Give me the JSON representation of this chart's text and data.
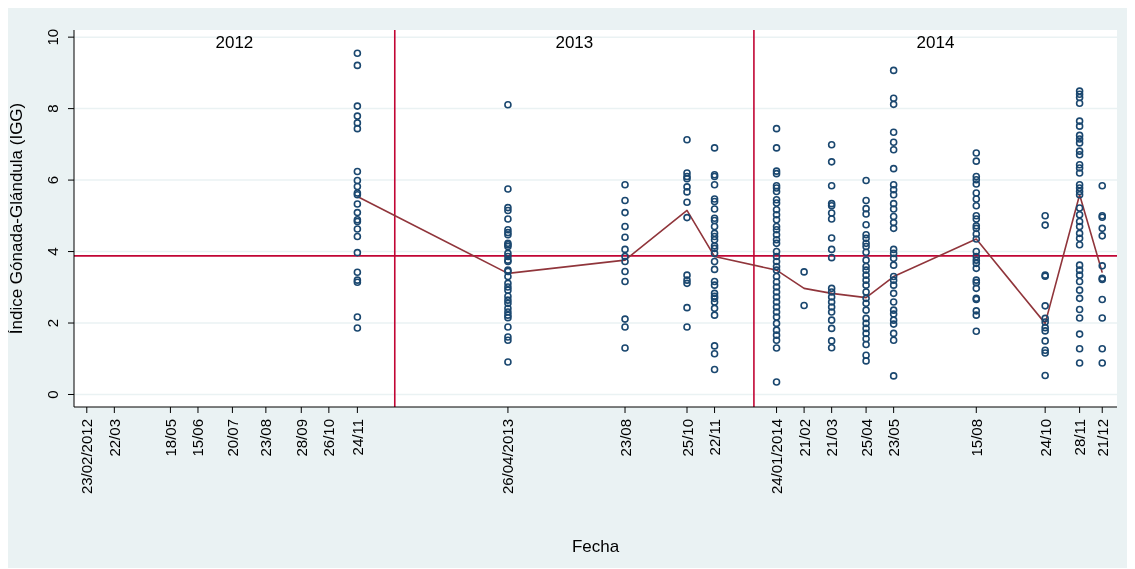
{
  "chart_data": {
    "type": "scatter",
    "xlabel": "Fecha",
    "ylabel": "Índice Gónada-Glándula (IGG)",
    "xlim": [
      "2012-02-10",
      "2015-01-05"
    ],
    "xticks": [
      {
        "value": "2012-02-23",
        "label": "23/02/2012"
      },
      {
        "value": "2012-03-22",
        "label": "22/03"
      },
      {
        "value": "2012-05-18",
        "label": "18/05"
      },
      {
        "value": "2012-06-15",
        "label": "15/06"
      },
      {
        "value": "2012-07-20",
        "label": "20/07"
      },
      {
        "value": "2012-08-23",
        "label": "23/08"
      },
      {
        "value": "2012-09-28",
        "label": "28/09"
      },
      {
        "value": "2012-10-26",
        "label": "26/10"
      },
      {
        "value": "2012-11-24",
        "label": "24/11"
      },
      {
        "value": "2013-04-26",
        "label": "26/04/2013"
      },
      {
        "value": "2013-08-23",
        "label": "23/08"
      },
      {
        "value": "2013-10-25",
        "label": "25/10"
      },
      {
        "value": "2013-11-22",
        "label": "22/11"
      },
      {
        "value": "2014-01-24",
        "label": "24/01/2014"
      },
      {
        "value": "2014-02-21",
        "label": "21/02"
      },
      {
        "value": "2014-03-21",
        "label": "21/03"
      },
      {
        "value": "2014-04-25",
        "label": "25/04"
      },
      {
        "value": "2014-05-23",
        "label": "23/05"
      },
      {
        "value": "2014-08-15",
        "label": "15/08"
      },
      {
        "value": "2014-10-24",
        "label": "24/10"
      },
      {
        "value": "2014-11-28",
        "label": "28/11"
      },
      {
        "value": "2014-12-21",
        "label": "21/12"
      }
    ],
    "ylim": [
      -0.35,
      10.2
    ],
    "yticks": [
      0,
      2,
      4,
      6,
      8,
      10
    ],
    "grid": "y",
    "marker": "circle",
    "ref_lines": [
      {
        "axis": "y",
        "value": 3.88,
        "color": "#c10534"
      },
      {
        "axis": "x",
        "value": "2013-01-01",
        "color": "#c10534"
      },
      {
        "axis": "x",
        "value": "2014-01-01",
        "color": "#c10534"
      }
    ],
    "annotations": [
      "2012",
      "2013",
      "2014"
    ],
    "series": [
      {
        "type": "scatter",
        "color": "#1a476f",
        "x": [
          "2012-11-24",
          "2012-11-24",
          "2012-11-24",
          "2012-11-24",
          "2012-11-24",
          "2012-11-24",
          "2012-11-24",
          "2012-11-24",
          "2012-11-24",
          "2012-11-24",
          "2012-11-24",
          "2012-11-24",
          "2012-11-24",
          "2012-11-24",
          "2012-11-24",
          "2012-11-24",
          "2012-11-24",
          "2012-11-24",
          "2012-11-24",
          "2012-11-24",
          "2012-11-24",
          "2012-11-24",
          "2012-11-24"
        ],
        "values": [
          9.55,
          9.21,
          8.07,
          7.79,
          7.6,
          7.44,
          6.24,
          5.99,
          5.82,
          5.64,
          5.59,
          5.33,
          5.09,
          4.89,
          4.84,
          4.63,
          4.42,
          3.97,
          3.42,
          3.2,
          3.14,
          2.17,
          1.86
        ]
      },
      {
        "type": "scatter",
        "color": "#1a476f",
        "x": [
          "2013-04-26",
          "2013-04-26",
          "2013-04-26",
          "2013-04-26",
          "2013-04-26",
          "2013-04-26",
          "2013-04-26",
          "2013-04-26",
          "2013-04-26",
          "2013-04-26",
          "2013-04-26",
          "2013-04-26",
          "2013-04-26",
          "2013-04-26",
          "2013-04-26",
          "2013-04-26",
          "2013-04-26",
          "2013-04-26",
          "2013-04-26",
          "2013-04-26",
          "2013-04-26",
          "2013-04-26",
          "2013-04-26",
          "2013-04-26",
          "2013-04-26",
          "2013-04-26",
          "2013-04-26",
          "2013-04-26",
          "2013-04-26",
          "2013-04-26",
          "2013-04-26",
          "2013-04-26"
        ],
        "values": [
          8.11,
          5.75,
          5.23,
          5.15,
          4.91,
          4.61,
          4.53,
          4.47,
          4.23,
          4.19,
          4.14,
          3.95,
          3.86,
          3.76,
          3.72,
          3.48,
          3.44,
          3.3,
          3.11,
          3.01,
          2.92,
          2.75,
          2.64,
          2.55,
          2.41,
          2.31,
          2.22,
          2.15,
          1.89,
          1.61,
          1.52,
          0.91
        ]
      },
      {
        "type": "scatter",
        "color": "#1a476f",
        "x": [
          "2013-08-23",
          "2013-08-23",
          "2013-08-23",
          "2013-08-23",
          "2013-08-23",
          "2013-08-23",
          "2013-08-23",
          "2013-08-23",
          "2013-08-23",
          "2013-08-23",
          "2013-08-23",
          "2013-08-23",
          "2013-08-23"
        ],
        "values": [
          5.87,
          5.43,
          5.09,
          4.7,
          4.4,
          4.06,
          3.86,
          3.72,
          3.44,
          3.16,
          2.11,
          1.89,
          1.3
        ]
      },
      {
        "type": "scatter",
        "color": "#1a476f",
        "x": [
          "2013-10-25",
          "2013-10-25",
          "2013-10-25",
          "2013-10-25",
          "2013-10-25",
          "2013-10-25",
          "2013-10-25",
          "2013-10-25",
          "2013-10-25",
          "2013-10-25",
          "2013-10-25",
          "2013-10-25",
          "2013-10-25"
        ],
        "values": [
          7.13,
          6.2,
          6.1,
          6.04,
          5.81,
          5.67,
          5.38,
          4.95,
          3.34,
          3.2,
          3.11,
          2.43,
          1.89
        ]
      },
      {
        "type": "scatter",
        "color": "#1a476f",
        "x": [
          "2013-11-22",
          "2013-11-22",
          "2013-11-22",
          "2013-11-22",
          "2013-11-22",
          "2013-11-22",
          "2013-11-22",
          "2013-11-22",
          "2013-11-22",
          "2013-11-22",
          "2013-11-22",
          "2013-11-22",
          "2013-11-22",
          "2013-11-22",
          "2013-11-22",
          "2013-11-22",
          "2013-11-22",
          "2013-11-22",
          "2013-11-22",
          "2013-11-22",
          "2013-11-22",
          "2013-11-22",
          "2013-11-22",
          "2013-11-22",
          "2013-11-22",
          "2013-11-22",
          "2013-11-22",
          "2013-11-22",
          "2013-11-22"
        ],
        "values": [
          6.9,
          6.15,
          6.1,
          5.87,
          5.47,
          5.4,
          5.19,
          4.93,
          4.87,
          4.7,
          4.51,
          4.42,
          4.33,
          4.16,
          4.09,
          3.95,
          3.72,
          3.5,
          3.16,
          3.06,
          2.83,
          2.75,
          2.69,
          2.59,
          2.41,
          2.22,
          1.36,
          1.14,
          0.7
        ]
      },
      {
        "type": "scatter",
        "color": "#1a476f",
        "x": [
          "2014-01-24",
          "2014-01-24",
          "2014-01-24",
          "2014-01-24",
          "2014-01-24",
          "2014-01-24",
          "2014-01-24",
          "2014-01-24",
          "2014-01-24",
          "2014-01-24",
          "2014-01-24",
          "2014-01-24",
          "2014-01-24",
          "2014-01-24",
          "2014-01-24",
          "2014-01-24",
          "2014-01-24",
          "2014-01-24",
          "2014-01-24",
          "2014-01-24",
          "2014-01-24",
          "2014-01-24",
          "2014-01-24",
          "2014-01-24",
          "2014-01-24",
          "2014-01-24",
          "2014-01-24",
          "2014-01-24",
          "2014-01-24",
          "2014-01-24",
          "2014-01-24",
          "2014-01-24",
          "2014-01-24",
          "2014-01-24",
          "2014-01-24",
          "2014-01-24",
          "2014-01-24"
        ],
        "values": [
          7.44,
          6.9,
          6.25,
          6.18,
          5.84,
          5.78,
          5.68,
          5.45,
          5.36,
          5.17,
          5.03,
          4.89,
          4.7,
          4.61,
          4.47,
          4.33,
          4.23,
          4.0,
          3.86,
          3.72,
          3.58,
          3.48,
          3.3,
          3.15,
          3.01,
          2.87,
          2.73,
          2.59,
          2.45,
          2.31,
          2.17,
          1.99,
          1.8,
          1.66,
          1.52,
          1.3,
          0.35
        ]
      },
      {
        "type": "scatter",
        "color": "#1a476f",
        "x": [
          "2014-02-21",
          "2014-02-21"
        ],
        "values": [
          3.43,
          2.49
        ]
      },
      {
        "type": "scatter",
        "color": "#1a476f",
        "x": [
          "2014-03-21",
          "2014-03-21",
          "2014-03-21",
          "2014-03-21",
          "2014-03-21",
          "2014-03-21",
          "2014-03-21",
          "2014-03-21",
          "2014-03-21",
          "2014-03-21",
          "2014-03-21",
          "2014-03-21",
          "2014-03-21",
          "2014-03-21",
          "2014-03-21",
          "2014-03-21",
          "2014-03-21",
          "2014-03-21",
          "2014-03-21",
          "2014-03-21"
        ],
        "values": [
          6.99,
          6.51,
          5.84,
          5.34,
          5.28,
          5.08,
          4.91,
          4.38,
          4.06,
          3.83,
          2.97,
          2.87,
          2.73,
          2.59,
          2.45,
          2.31,
          2.08,
          1.85,
          1.5,
          1.31
        ]
      },
      {
        "type": "scatter",
        "color": "#1a476f",
        "x": [
          "2014-04-25",
          "2014-04-25",
          "2014-04-25",
          "2014-04-25",
          "2014-04-25",
          "2014-04-25",
          "2014-04-25",
          "2014-04-25",
          "2014-04-25",
          "2014-04-25",
          "2014-04-25",
          "2014-04-25",
          "2014-04-25",
          "2014-04-25",
          "2014-04-25",
          "2014-04-25",
          "2014-04-25",
          "2014-04-25",
          "2014-04-25",
          "2014-04-25",
          "2014-04-25",
          "2014-04-25",
          "2014-04-25",
          "2014-04-25",
          "2014-04-25",
          "2014-04-25",
          "2014-04-25",
          "2014-04-25"
        ],
        "values": [
          5.99,
          5.43,
          5.2,
          5.05,
          4.75,
          4.47,
          4.37,
          4.23,
          4.14,
          3.98,
          3.76,
          3.58,
          3.48,
          3.34,
          3.2,
          3.06,
          2.87,
          2.69,
          2.55,
          2.36,
          2.13,
          1.99,
          1.85,
          1.71,
          1.56,
          1.4,
          1.1,
          0.94
        ]
      },
      {
        "type": "scatter",
        "color": "#1a476f",
        "x": [
          "2014-05-23",
          "2014-05-23",
          "2014-05-23",
          "2014-05-23",
          "2014-05-23",
          "2014-05-23",
          "2014-05-23",
          "2014-05-23",
          "2014-05-23",
          "2014-05-23",
          "2014-05-23",
          "2014-05-23",
          "2014-05-23",
          "2014-05-23",
          "2014-05-23",
          "2014-05-23",
          "2014-05-23",
          "2014-05-23",
          "2014-05-23",
          "2014-05-23",
          "2014-05-23",
          "2014-05-23",
          "2014-05-23",
          "2014-05-23",
          "2014-05-23",
          "2014-05-23",
          "2014-05-23",
          "2014-05-23",
          "2014-05-23",
          "2014-05-23",
          "2014-05-23"
        ],
        "values": [
          9.07,
          8.29,
          8.12,
          7.34,
          7.06,
          6.85,
          6.32,
          5.87,
          5.73,
          5.59,
          5.34,
          5.19,
          4.98,
          4.81,
          4.65,
          4.06,
          3.95,
          3.81,
          3.62,
          3.3,
          3.2,
          3.06,
          2.83,
          2.59,
          2.36,
          2.25,
          2.08,
          1.97,
          1.71,
          1.52,
          0.52
        ]
      },
      {
        "type": "scatter",
        "color": "#1a476f",
        "x": [
          "2014-08-15",
          "2014-08-15",
          "2014-08-15",
          "2014-08-15",
          "2014-08-15",
          "2014-08-15",
          "2014-08-15",
          "2014-08-15",
          "2014-08-15",
          "2014-08-15",
          "2014-08-15",
          "2014-08-15",
          "2014-08-15",
          "2014-08-15",
          "2014-08-15",
          "2014-08-15",
          "2014-08-15",
          "2014-08-15",
          "2014-08-15",
          "2014-08-15",
          "2014-08-15",
          "2014-08-15",
          "2014-08-15",
          "2014-08-15",
          "2014-08-15",
          "2014-08-15",
          "2014-08-15"
        ],
        "values": [
          6.76,
          6.53,
          6.1,
          6.01,
          5.89,
          5.64,
          5.47,
          5.28,
          5.0,
          4.91,
          4.72,
          4.65,
          4.49,
          4.35,
          4.0,
          3.86,
          3.76,
          3.67,
          3.53,
          3.2,
          3.13,
          2.97,
          2.69,
          2.66,
          2.34,
          2.22,
          1.77
        ]
      },
      {
        "type": "scatter",
        "color": "#1a476f",
        "x": [
          "2014-10-24",
          "2014-10-24",
          "2014-10-24",
          "2014-10-24",
          "2014-10-24",
          "2014-10-24",
          "2014-10-24",
          "2014-10-24",
          "2014-10-24",
          "2014-10-24",
          "2014-10-24",
          "2014-10-24",
          "2014-10-24"
        ],
        "values": [
          5.0,
          4.74,
          3.34,
          3.31,
          2.48,
          2.13,
          2.03,
          1.87,
          1.78,
          1.5,
          1.24,
          1.16,
          0.53
        ]
      },
      {
        "type": "scatter",
        "color": "#1a476f",
        "x": [
          "2014-11-28",
          "2014-11-28",
          "2014-11-28",
          "2014-11-28",
          "2014-11-28",
          "2014-11-28",
          "2014-11-28",
          "2014-11-28",
          "2014-11-28",
          "2014-11-28",
          "2014-11-28",
          "2014-11-28",
          "2014-11-28",
          "2014-11-28",
          "2014-11-28",
          "2014-11-28",
          "2014-11-28",
          "2014-11-28",
          "2014-11-28",
          "2014-11-28",
          "2014-11-28",
          "2014-11-28",
          "2014-11-28",
          "2014-11-28",
          "2014-11-28",
          "2014-11-28",
          "2014-11-28",
          "2014-11-28",
          "2014-11-28",
          "2014-11-28",
          "2014-11-28",
          "2014-11-28",
          "2014-11-28",
          "2014-11-28",
          "2014-11-28",
          "2014-11-28"
        ],
        "values": [
          8.49,
          8.4,
          8.31,
          8.15,
          7.65,
          7.51,
          7.25,
          7.15,
          7.04,
          6.81,
          6.71,
          6.43,
          6.34,
          6.2,
          5.87,
          5.78,
          5.68,
          5.59,
          5.22,
          5.03,
          4.84,
          4.7,
          4.51,
          4.37,
          4.19,
          3.62,
          3.48,
          3.34,
          3.16,
          2.92,
          2.69,
          2.38,
          2.14,
          1.69,
          1.28,
          0.88
        ]
      },
      {
        "type": "scatter",
        "color": "#1a476f",
        "x": [
          "2014-12-21",
          "2014-12-21",
          "2014-12-21",
          "2014-12-21",
          "2014-12-21",
          "2014-12-21",
          "2014-12-21",
          "2014-12-21",
          "2014-12-21",
          "2014-12-21",
          "2014-12-21",
          "2014-12-21"
        ],
        "values": [
          5.84,
          5.0,
          4.96,
          4.65,
          4.44,
          3.6,
          3.25,
          3.22,
          2.66,
          2.14,
          1.28,
          0.88
        ]
      },
      {
        "type": "line",
        "color": "#90353b",
        "marker": "none",
        "x": [
          "2012-11-24",
          "2013-04-26",
          "2013-08-23",
          "2013-10-25",
          "2013-11-22",
          "2014-01-24",
          "2014-02-21",
          "2014-03-21",
          "2014-04-25",
          "2014-05-23",
          "2014-08-15",
          "2014-10-24",
          "2014-11-28",
          "2014-12-21"
        ],
        "values": [
          5.54,
          3.39,
          3.76,
          5.15,
          3.86,
          3.48,
          2.97,
          2.83,
          2.71,
          3.3,
          4.35,
          1.99,
          5.59,
          3.41
        ]
      }
    ]
  }
}
